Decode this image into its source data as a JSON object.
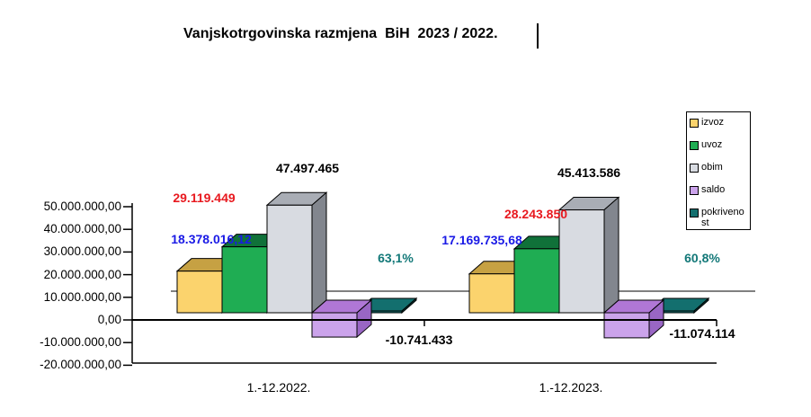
{
  "title": {
    "text": "Vanjskotrgovinska razmjena  BiH  2023 / 2022."
  },
  "legend": {
    "items": [
      {
        "label": "izvoz",
        "color": "#FBD36D"
      },
      {
        "label": "uvoz",
        "color": "#1FAD53"
      },
      {
        "label": "obim",
        "color": "#D8DBE1"
      },
      {
        "label": "saldo",
        "color": "#CBA3EB"
      },
      {
        "label": "pokrivenost",
        "color": "#136F6E"
      }
    ]
  },
  "chart_data": {
    "type": "bar",
    "style": "3d-clustered-column",
    "title": "Vanjskotrgovinska razmjena  BiH  2023 / 2022.",
    "categories": [
      "1.-12.2022.",
      "1.-12.2023."
    ],
    "series": [
      {
        "name": "izvoz",
        "values": [
          18378016.12,
          17169735.68
        ],
        "data_labels": [
          "18.378.016,12",
          "17.169.735,68"
        ],
        "label_color": "#1A1AE6",
        "color": "#FBD36D",
        "color_top": "#C6A143",
        "color_side": "#AA8A36"
      },
      {
        "name": "uvoz",
        "values": [
          29119449,
          28243850
        ],
        "data_labels": [
          "29.119.449",
          "28.243.850"
        ],
        "label_color": "#E8191F",
        "color": "#1FAD53",
        "color_top": "#107139",
        "color_side": "#0C5E2F"
      },
      {
        "name": "obim",
        "values": [
          47497465,
          45413586
        ],
        "data_labels": [
          "47.497.465",
          "45.413.586"
        ],
        "label_color": "#000000",
        "color": "#D8DBE1",
        "color_top": "#A9ADB5",
        "color_side": "#82868E"
      },
      {
        "name": "saldo",
        "values": [
          -10741433,
          -11074114
        ],
        "data_labels": [
          "-10.741.433",
          "-11.074.114"
        ],
        "label_color": "#000000",
        "color": "#CBA3EB",
        "color_top": "#B077D6",
        "color_side": "#9966C4"
      },
      {
        "name": "pokrivenost",
        "values": [
          63.1,
          60.8
        ],
        "data_labels": [
          "63,1%",
          "60,8%"
        ],
        "label_color": "#127878",
        "color": "#136F6E",
        "color_top": "#136F6E",
        "color_side": "#0A4A4A"
      }
    ],
    "y_axis": {
      "min": -20000000,
      "max": 50000000,
      "step": 10000000,
      "tick_labels": [
        "50.000.000,00",
        "40.000.000,00",
        "30.000.000,00",
        "20.000.000,00",
        "10.000.000,00",
        "0,00",
        "-10.000.000,00",
        "-20.000.000,00"
      ]
    },
    "legend_position": "right",
    "gridlines": "zero-line-only"
  }
}
